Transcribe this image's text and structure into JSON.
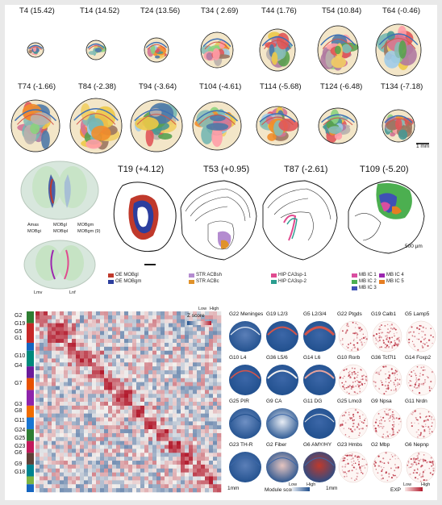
{
  "brain_series": {
    "row1": [
      "T4 (15.42)",
      "T14 (14.52)",
      "T24 (13.56)",
      "T34 ( 2.69)",
      "T44 (1.76)",
      "T54 (10.84)",
      "T64 (-0.46)"
    ],
    "row2": [
      "T74 (-1.66)",
      "T84 (-2.38)",
      "T94 (-3.64)",
      "T104 (-4.61)",
      "T114 (-5.68)",
      "T124 (-6.48)",
      "T134 (-7.18)"
    ]
  },
  "inset_3d": {
    "labels_top": [
      "Amas",
      "MOBgl",
      "MOBgm",
      "MOBgi",
      "MOBipl",
      "MOBgm (9)"
    ],
    "labels_bottom": [
      "Lmv",
      "Lnf"
    ]
  },
  "sections": [
    {
      "title": "T19 (+4.12)",
      "legend": [
        {
          "label": "OE MOBgl",
          "color": "#c0392b"
        },
        {
          "label": "OE MOBgm",
          "color": "#2c3e9e"
        }
      ]
    },
    {
      "title": "T53 (+0.95)",
      "legend": [
        {
          "label": "STR ACBsh",
          "color": "#b48cd0"
        },
        {
          "label": "STR ACBc",
          "color": "#e0922a"
        }
      ]
    },
    {
      "title": "T87 (-2.61)",
      "legend": [
        {
          "label": "HIP CA3sp-1",
          "color": "#e04b8f"
        },
        {
          "label": "HIP CA3sp-2",
          "color": "#2a9d8f"
        }
      ]
    },
    {
      "title": "T109 (-5.20)",
      "legend": [
        {
          "label": "MB IC 1",
          "color": "#d94ea0"
        },
        {
          "label": "MB IC 2",
          "color": "#4caf50"
        },
        {
          "label": "MB IC 3",
          "color": "#3f51b5"
        },
        {
          "label": "MB IC 4",
          "color": "#9c27b0"
        },
        {
          "label": "MB IC 5",
          "color": "#e67e22"
        }
      ]
    }
  ],
  "scale_bar": "1 mm",
  "scale_bar_small": "500 µm",
  "heatmap": {
    "row_groups": [
      "G2",
      "G19",
      "G5",
      "G1",
      "G10",
      "G4",
      "G7",
      "G3",
      "G8",
      "G11",
      "G24",
      "G25",
      "G23",
      "G6",
      "G9",
      "G18"
    ],
    "legend_title": "Z score",
    "legend_low": "Low",
    "legend_high": "High"
  },
  "module_maps": {
    "labels": [
      [
        "G22 Meninges",
        "G19 L2/3",
        "G5 L2/3/4"
      ],
      [
        "G10 L4",
        "G36 L5/6",
        "G14 L6"
      ],
      [
        "G25 PIR",
        "G9 CA",
        "G11 DG"
      ],
      [
        "G23 TH-R",
        "G2 Fiber",
        "G6 AMY/HY"
      ]
    ],
    "legend_title": "Module score",
    "legend_low": "Low",
    "legend_high": "High",
    "scale": "1mm"
  },
  "gene_maps": {
    "labels": [
      [
        "G22 Ptgds",
        "G19 Calb1",
        "G5 Lamp5"
      ],
      [
        "G10 Rorb",
        "G36 Tcf7l1",
        "G14 Foxp2"
      ],
      [
        "G25 Lmo3",
        "G9 Npsa",
        "G11 Nrdn"
      ],
      [
        "G23 Hmbs",
        "G2 Mbp",
        "G6 Nepnp"
      ]
    ],
    "legend_title": "EXP",
    "legend_low": "Low",
    "legend_high": "High",
    "scale": "1mm"
  },
  "colors": {
    "red": "#c0392b",
    "blue": "#2c4f9e",
    "heat_low": "#1f4e8c",
    "heat_mid": "#f4f1ee",
    "heat_high": "#b2182b"
  }
}
